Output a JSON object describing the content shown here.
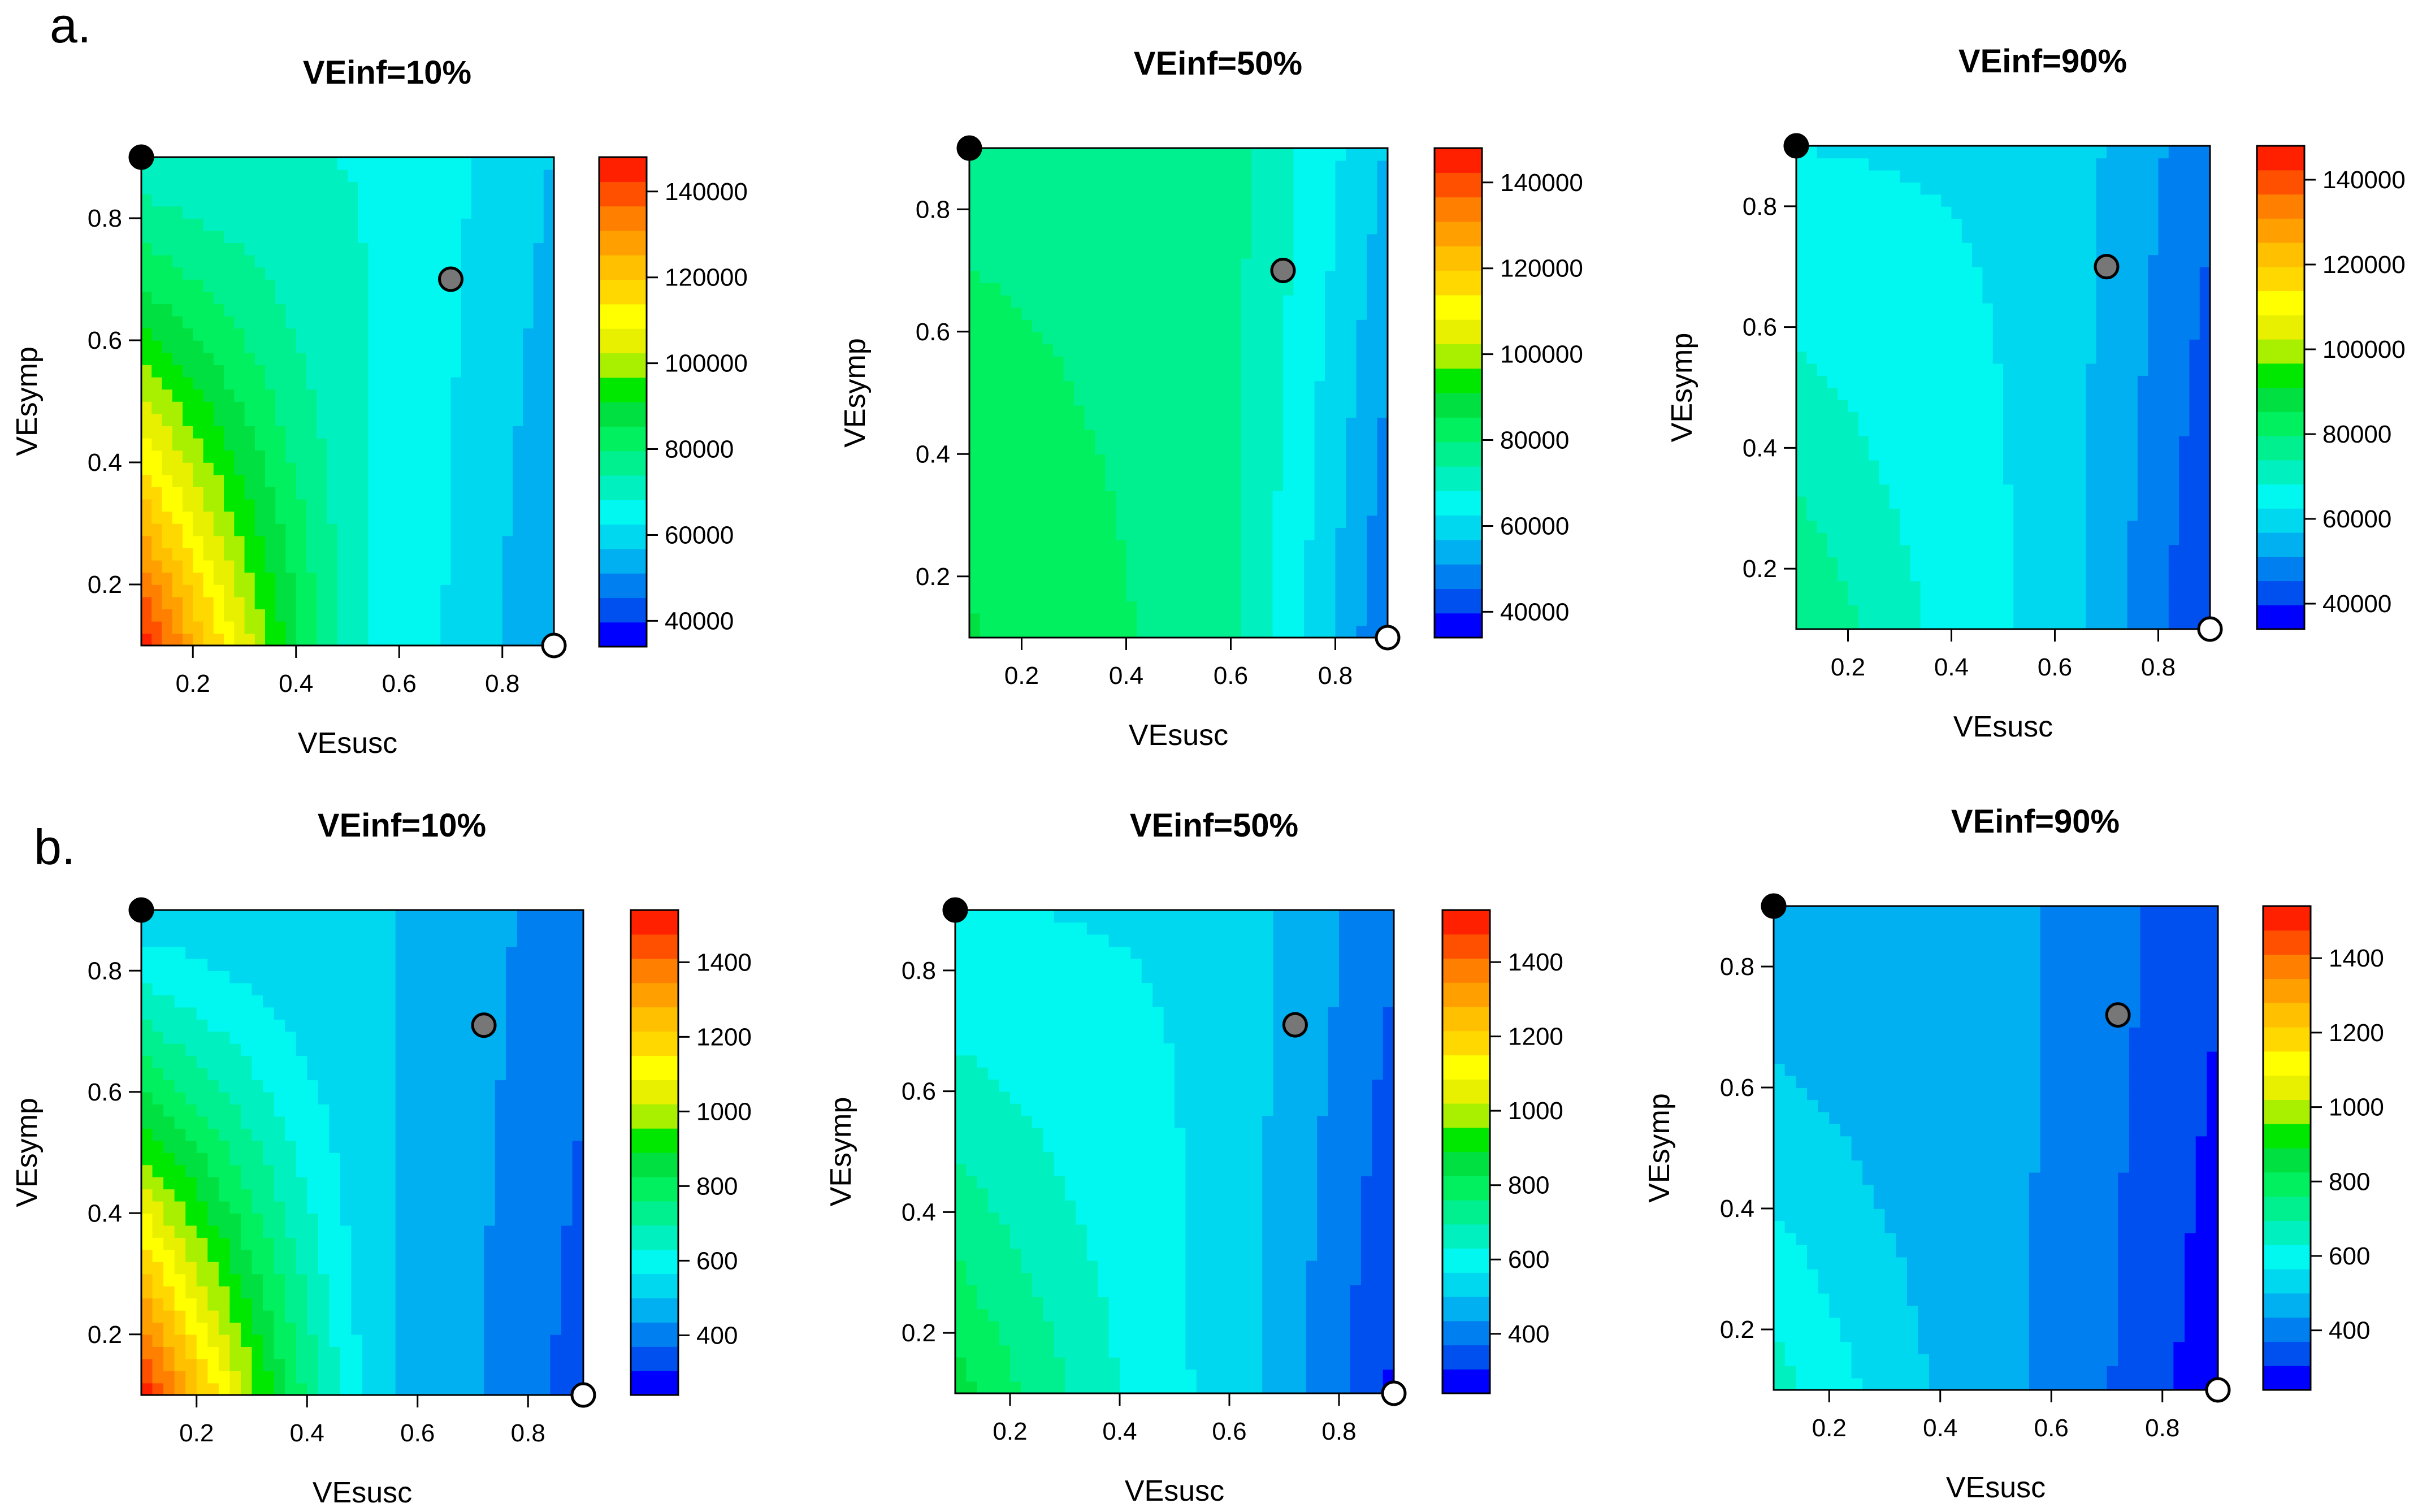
{
  "figure": {
    "panel_labels": [
      "a.",
      "b."
    ]
  },
  "chart_data": [
    {
      "type": "heatmap",
      "row": 0,
      "col": 0,
      "title": "VEinf=10%",
      "xlabel": "VEsusc",
      "ylabel": "VEsymp",
      "xlim": [
        0.1,
        0.9
      ],
      "ylim": [
        0.1,
        0.9
      ],
      "xticks": [
        "0.2",
        "0.4",
        "0.6",
        "0.8"
      ],
      "yticks": [
        "0.2",
        "0.4",
        "0.6",
        "0.8"
      ],
      "colorbar": {
        "min": 34000,
        "max": 148000,
        "ticks": [
          "40000",
          "60000",
          "80000",
          "100000",
          "120000",
          "140000"
        ]
      },
      "z_estimate": {
        "base": 68000,
        "low_susc_low_symp": 148000,
        "high_susc": 50000
      },
      "points": [
        {
          "name": "black",
          "x": 0.1,
          "y": 0.9,
          "color": "#000000"
        },
        {
          "name": "grey",
          "x": 0.7,
          "y": 0.7,
          "color": "#777777"
        },
        {
          "name": "white",
          "x": 0.9,
          "y": 0.1,
          "color": "#ffffff"
        }
      ]
    },
    {
      "type": "heatmap",
      "row": 0,
      "col": 1,
      "title": "VEinf=50%",
      "xlabel": "VEsusc",
      "ylabel": "VEsymp",
      "xlim": [
        0.1,
        0.9
      ],
      "ylim": [
        0.1,
        0.9
      ],
      "xticks": [
        "0.2",
        "0.4",
        "0.6",
        "0.8"
      ],
      "yticks": [
        "0.2",
        "0.4",
        "0.6",
        "0.8"
      ],
      "colorbar": {
        "min": 34000,
        "max": 148000,
        "ticks": [
          "40000",
          "60000",
          "80000",
          "100000",
          "120000",
          "140000"
        ]
      },
      "z_estimate": {
        "base": 78000,
        "low_susc_low_symp": 86000,
        "high_susc": 44000
      },
      "points": [
        {
          "name": "black",
          "x": 0.1,
          "y": 0.9,
          "color": "#000000"
        },
        {
          "name": "grey",
          "x": 0.7,
          "y": 0.7,
          "color": "#777777"
        },
        {
          "name": "white",
          "x": 0.9,
          "y": 0.1,
          "color": "#ffffff"
        }
      ]
    },
    {
      "type": "heatmap",
      "row": 0,
      "col": 2,
      "title": "VEinf=90%",
      "xlabel": "VEsusc",
      "ylabel": "VEsymp",
      "xlim": [
        0.1,
        0.9
      ],
      "ylim": [
        0.1,
        0.9
      ],
      "xticks": [
        "0.2",
        "0.4",
        "0.6",
        "0.8"
      ],
      "yticks": [
        "0.2",
        "0.4",
        "0.6",
        "0.8"
      ],
      "colorbar": {
        "min": 34000,
        "max": 148000,
        "ticks": [
          "40000",
          "60000",
          "80000",
          "100000",
          "120000",
          "140000"
        ]
      },
      "z_estimate": {
        "base": 62000,
        "low_susc_low_symp": 80000,
        "high_susc": 38000
      },
      "points": [
        {
          "name": "black",
          "x": 0.1,
          "y": 0.9,
          "color": "#000000"
        },
        {
          "name": "grey",
          "x": 0.7,
          "y": 0.7,
          "color": "#777777"
        },
        {
          "name": "white",
          "x": 0.9,
          "y": 0.1,
          "color": "#ffffff"
        }
      ]
    },
    {
      "type": "heatmap",
      "row": 1,
      "col": 0,
      "title": "VEinf=10%",
      "xlabel": "VEsusc",
      "ylabel": "VEsymp",
      "xlim": [
        0.1,
        0.9
      ],
      "ylim": [
        0.1,
        0.9
      ],
      "xticks": [
        "0.2",
        "0.4",
        "0.6",
        "0.8"
      ],
      "yticks": [
        "0.2",
        "0.4",
        "0.6",
        "0.8"
      ],
      "colorbar": {
        "min": 240,
        "max": 1540,
        "ticks": [
          "400",
          "600",
          "800",
          "1000",
          "1200",
          "1400"
        ]
      },
      "z_estimate": {
        "base": 500,
        "low_susc_low_symp": 1540,
        "high_susc": 330
      },
      "points": [
        {
          "name": "black",
          "x": 0.1,
          "y": 0.9,
          "color": "#000000"
        },
        {
          "name": "grey",
          "x": 0.72,
          "y": 0.71,
          "color": "#777777"
        },
        {
          "name": "white",
          "x": 0.9,
          "y": 0.1,
          "color": "#ffffff"
        }
      ]
    },
    {
      "type": "heatmap",
      "row": 1,
      "col": 1,
      "title": "VEinf=50%",
      "xlabel": "VEsusc",
      "ylabel": "VEsymp",
      "xlim": [
        0.1,
        0.9
      ],
      "ylim": [
        0.1,
        0.9
      ],
      "xticks": [
        "0.2",
        "0.4",
        "0.6",
        "0.8"
      ],
      "yticks": [
        "0.2",
        "0.4",
        "0.6",
        "0.8"
      ],
      "colorbar": {
        "min": 240,
        "max": 1540,
        "ticks": [
          "400",
          "600",
          "800",
          "1000",
          "1200",
          "1400"
        ]
      },
      "z_estimate": {
        "base": 560,
        "low_susc_low_symp": 860,
        "high_susc": 280
      },
      "points": [
        {
          "name": "black",
          "x": 0.1,
          "y": 0.9,
          "color": "#000000"
        },
        {
          "name": "grey",
          "x": 0.72,
          "y": 0.71,
          "color": "#777777"
        },
        {
          "name": "white",
          "x": 0.9,
          "y": 0.1,
          "color": "#ffffff"
        }
      ]
    },
    {
      "type": "heatmap",
      "row": 1,
      "col": 2,
      "title": "VEinf=90%",
      "xlabel": "VEsusc",
      "ylabel": "VEsymp",
      "xlim": [
        0.1,
        0.9
      ],
      "ylim": [
        0.1,
        0.9
      ],
      "xticks": [
        "0.2",
        "0.4",
        "0.6",
        "0.8"
      ],
      "yticks": [
        "0.2",
        "0.4",
        "0.6",
        "0.8"
      ],
      "colorbar": {
        "min": 240,
        "max": 1540,
        "ticks": [
          "400",
          "600",
          "800",
          "1000",
          "1200",
          "1400"
        ]
      },
      "z_estimate": {
        "base": 440,
        "low_susc_low_symp": 660,
        "high_susc": 250
      },
      "points": [
        {
          "name": "black",
          "x": 0.1,
          "y": 0.9,
          "color": "#000000"
        },
        {
          "name": "grey",
          "x": 0.72,
          "y": 0.72,
          "color": "#777777"
        },
        {
          "name": "white",
          "x": 0.9,
          "y": 0.1,
          "color": "#ffffff"
        }
      ]
    }
  ],
  "palette": [
    "#0000ff",
    "#0050f0",
    "#0080f0",
    "#00b0f0",
    "#00d8f0",
    "#00f8f0",
    "#00f0c0",
    "#00f090",
    "#00f060",
    "#00e040",
    "#00e800",
    "#a8f000",
    "#e8f000",
    "#ffff00",
    "#ffd800",
    "#ffc000",
    "#ffa000",
    "#ff8000",
    "#ff5000",
    "#ff2000"
  ]
}
